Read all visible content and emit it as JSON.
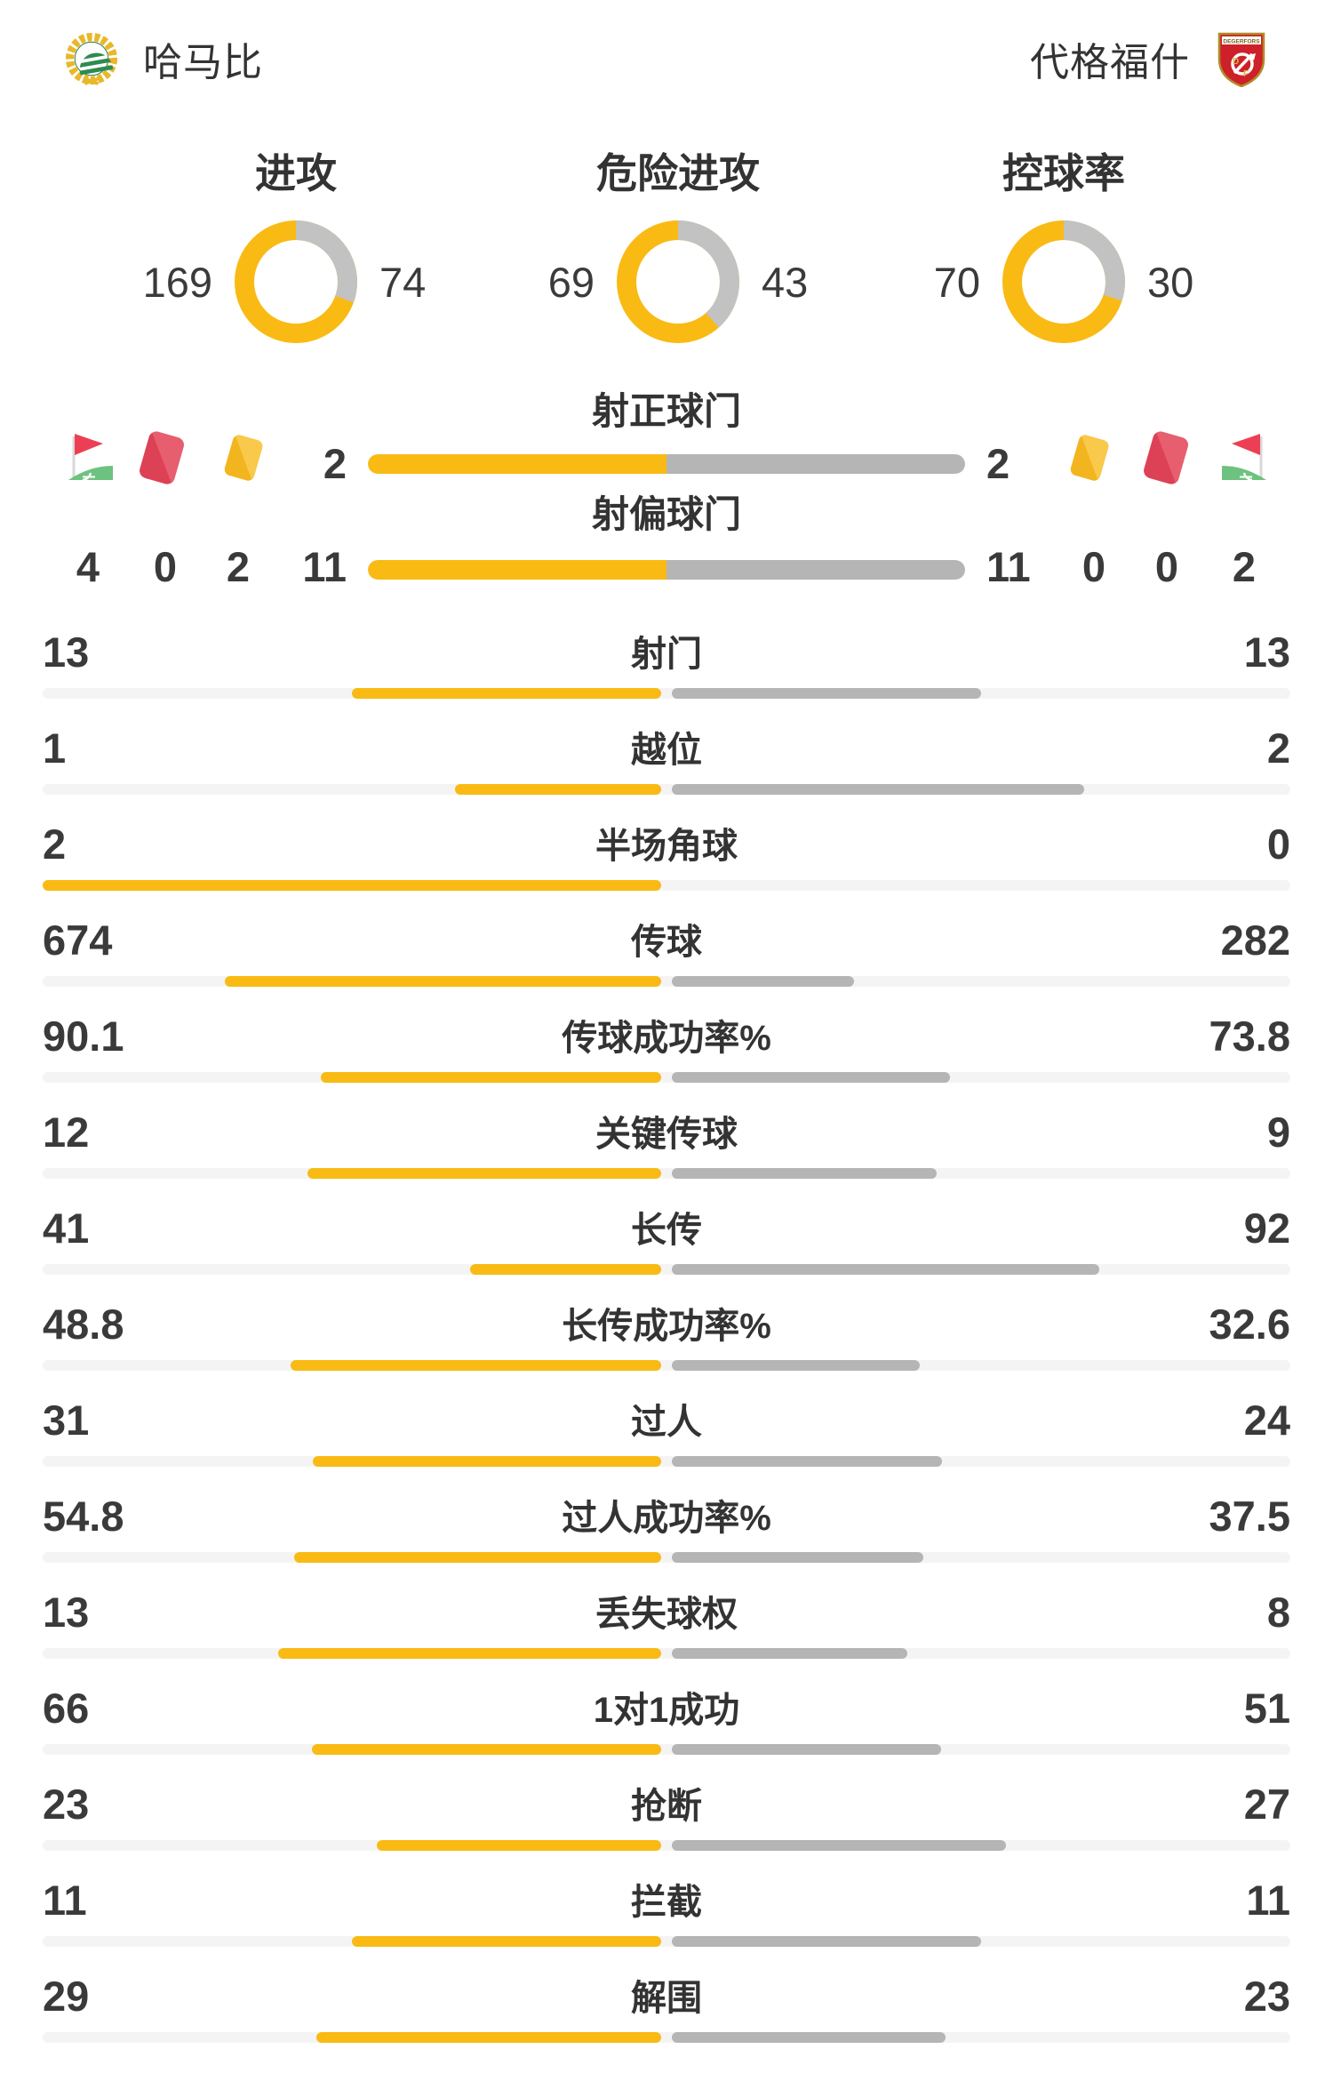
{
  "header": {
    "home_team": "哈马比",
    "away_team": "代格福什",
    "away_logo_text": "DEGERFORS"
  },
  "donuts": [
    {
      "label": "进攻",
      "home": 169,
      "away": 74
    },
    {
      "label": "危险进攻",
      "home": 69,
      "away": 43
    },
    {
      "label": "控球率",
      "home": 70,
      "away": 30
    }
  ],
  "shots": [
    {
      "label": "射正球门",
      "home": 2,
      "away": 2
    },
    {
      "label": "射偏球门",
      "home": 11,
      "away": 11
    }
  ],
  "cards": {
    "home": {
      "corner": 4,
      "red": 0,
      "yellow": 2
    },
    "away": {
      "corner": 2,
      "red": 0,
      "yellow": 0
    }
  },
  "stats_rows": [
    {
      "label": "射门",
      "home": 13,
      "away": 13
    },
    {
      "label": "越位",
      "home": 1,
      "away": 2
    },
    {
      "label": "半场角球",
      "home": 2,
      "away": 0
    },
    {
      "label": "传球",
      "home": 674,
      "away": 282
    },
    {
      "label": "传球成功率%",
      "home": 90.1,
      "away": 73.8
    },
    {
      "label": "关键传球",
      "home": 12,
      "away": 9
    },
    {
      "label": "长传",
      "home": 41,
      "away": 92
    },
    {
      "label": "长传成功率%",
      "home": 48.8,
      "away": 32.6
    },
    {
      "label": "过人",
      "home": 31,
      "away": 24
    },
    {
      "label": "过人成功率%",
      "home": 54.8,
      "away": 37.5
    },
    {
      "label": "丢失球权",
      "home": 13,
      "away": 8
    },
    {
      "label": "1对1成功",
      "home": 66,
      "away": 51
    },
    {
      "label": "抢断",
      "home": 23,
      "away": 27
    },
    {
      "label": "拦截",
      "home": 11,
      "away": 11
    },
    {
      "label": "解围",
      "home": 29,
      "away": 23
    }
  ],
  "colors": {
    "home_accent": "#F9BA14",
    "away_accent": "#B5B5B5",
    "donut_gray": "#C2C2C2",
    "track": "#F4F4F4",
    "text": "#3A3A3A",
    "red_card": "#E04F60",
    "yellow_card": "#F5C02E",
    "flag_red": "#EC3F55",
    "flag_green": "#6EC27F"
  },
  "chart_data": [
    {
      "type": "pie",
      "title": "进攻",
      "legend": [
        "哈马比",
        "代格福什"
      ],
      "values": [
        169,
        74
      ]
    },
    {
      "type": "pie",
      "title": "危险进攻",
      "legend": [
        "哈马比",
        "代格福什"
      ],
      "values": [
        69,
        43
      ]
    },
    {
      "type": "pie",
      "title": "控球率",
      "legend": [
        "哈马比",
        "代格福什"
      ],
      "values": [
        70,
        30
      ]
    },
    {
      "type": "bar",
      "categories": [
        "射正球门",
        "射偏球门",
        "射门",
        "越位",
        "半场角球",
        "传球",
        "传球成功率%",
        "关键传球",
        "长传",
        "长传成功率%",
        "过人",
        "过人成功率%",
        "丢失球权",
        "1对1成功",
        "抢断",
        "拦截",
        "解围"
      ],
      "series": [
        {
          "name": "哈马比",
          "values": [
            2,
            11,
            13,
            1,
            2,
            674,
            90.1,
            12,
            41,
            48.8,
            31,
            54.8,
            13,
            66,
            23,
            11,
            29
          ]
        },
        {
          "name": "代格福什",
          "values": [
            2,
            11,
            13,
            2,
            0,
            282,
            73.8,
            9,
            92,
            32.6,
            24,
            37.5,
            8,
            51,
            27,
            11,
            23
          ]
        }
      ],
      "note": "左右对比条形，长度=值/(左值+右值)"
    }
  ]
}
